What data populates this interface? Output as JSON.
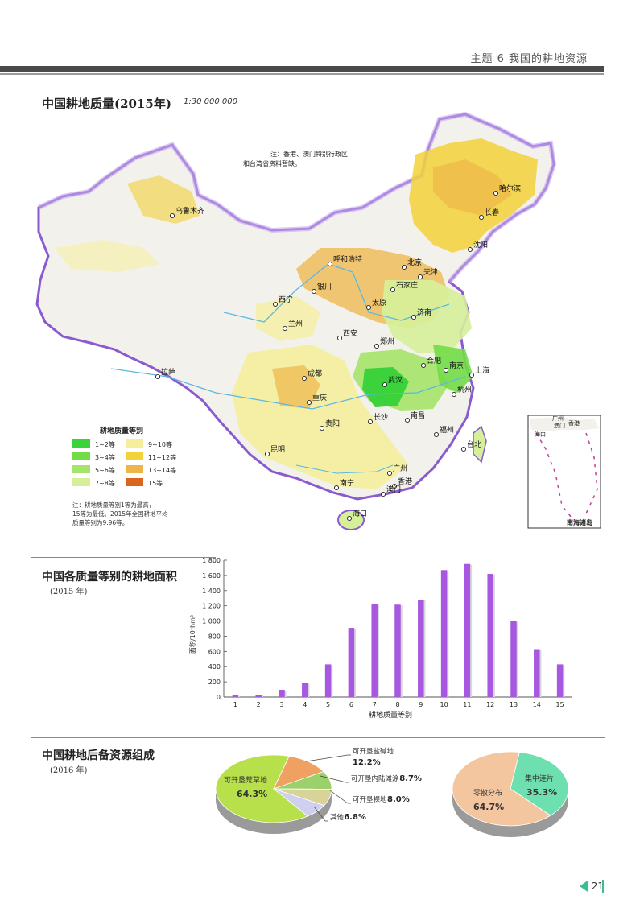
{
  "header": {
    "title": "主题 6   我国的耕地资源"
  },
  "map": {
    "title": "中国耕地质量(2015年)",
    "scale": "1:30 000 000",
    "note_top": [
      "注：香港、澳门特别行政区",
      "和台湾省资料暂缺。"
    ],
    "legend": {
      "title": "耕地质量等别",
      "items": [
        {
          "label": "1~2等",
          "color": "#3cd23c"
        },
        {
          "label": "9~10等",
          "color": "#f5ee9a"
        },
        {
          "label": "3~4等",
          "color": "#72dc47"
        },
        {
          "label": "11~12等",
          "color": "#f2d23a"
        },
        {
          "label": "5~6等",
          "color": "#a5e46a"
        },
        {
          "label": "13~14等",
          "color": "#eeb64a"
        },
        {
          "label": "7~8等",
          "color": "#d6f09a"
        },
        {
          "label": "15等",
          "color": "#d9661a"
        }
      ]
    },
    "note_bottom": [
      "注：耕地质量等别1等为最高，",
      "15等为最低。2015年全国耕地平均",
      "质量等别为9.96等。"
    ],
    "cities": [
      {
        "name": "哈尔滨"
      },
      {
        "name": "长春"
      },
      {
        "name": "沈阳"
      },
      {
        "name": "乌鲁木齐"
      },
      {
        "name": "呼和浩特"
      },
      {
        "name": "北京"
      },
      {
        "name": "天津"
      },
      {
        "name": "银川"
      },
      {
        "name": "石家庄"
      },
      {
        "name": "太原"
      },
      {
        "name": "济南"
      },
      {
        "name": "西宁"
      },
      {
        "name": "兰州"
      },
      {
        "name": "西安"
      },
      {
        "name": "郑州"
      },
      {
        "name": "合肥"
      },
      {
        "name": "南京"
      },
      {
        "name": "上海"
      },
      {
        "name": "武汉"
      },
      {
        "name": "杭州"
      },
      {
        "name": "成都"
      },
      {
        "name": "拉萨"
      },
      {
        "name": "重庆"
      },
      {
        "name": "长沙"
      },
      {
        "name": "南昌"
      },
      {
        "name": "贵阳"
      },
      {
        "name": "福州"
      },
      {
        "name": "台北"
      },
      {
        "name": "昆明"
      },
      {
        "name": "广州"
      },
      {
        "name": "南宁"
      },
      {
        "name": "香港"
      },
      {
        "name": "澳门"
      },
      {
        "name": "海口"
      }
    ],
    "inset": {
      "label": "南海诸岛",
      "labels": [
        "广州",
        "香港",
        "澳门",
        "海口"
      ]
    }
  },
  "area_chart": {
    "title": "中国各质量等别的耕地面积",
    "subtitle": "(2015 年)"
  },
  "chart_data": {
    "type": "bar",
    "categories": [
      "1",
      "2",
      "3",
      "4",
      "5",
      "6",
      "7",
      "8",
      "9",
      "10",
      "11",
      "12",
      "13",
      "14",
      "15"
    ],
    "values": [
      22,
      30,
      95,
      185,
      430,
      910,
      1220,
      1215,
      1280,
      1670,
      1750,
      1620,
      1000,
      630,
      430
    ],
    "xlabel": "耕地质量等别",
    "ylabel": "面积/10⁴hm²",
    "ylim": [
      0,
      1800
    ],
    "yticks": [
      0,
      200,
      400,
      600,
      800,
      1000,
      1200,
      1400,
      1600,
      1800
    ],
    "ytick_labels": [
      "0",
      "200",
      "400",
      "600",
      "800",
      "1 000",
      "1 200",
      "1 400",
      "1 600",
      "1 800"
    ],
    "bar_color": "#a857e0"
  },
  "reserve": {
    "title": "中国耕地后备资源组成",
    "subtitle": "(2016 年)",
    "pie1": [
      {
        "name": "可开垦荒草地",
        "value": 64.3,
        "label": "64.3%",
        "color": "#b7e04a"
      },
      {
        "name": "可开垦盐碱地",
        "value": 12.2,
        "label": "12.2%",
        "color": "#f0a060"
      },
      {
        "name": "可开垦内陆滩涂",
        "value": 8.7,
        "label": "8.7%",
        "color": "#9bd06a"
      },
      {
        "name": "可开垦裸地",
        "value": 8.0,
        "label": "8.0%",
        "color": "#d9d39a"
      },
      {
        "name": "其他",
        "value": 6.8,
        "label": "6.8%",
        "color": "#cfd0f0"
      }
    ],
    "pie2": [
      {
        "name": "集中连片",
        "value": 35.3,
        "label": "35.3%",
        "color": "#6ee0b0"
      },
      {
        "name": "零散分布",
        "value": 64.7,
        "label": "64.7%",
        "color": "#f4c6a0"
      }
    ]
  },
  "footer": {
    "page": "21"
  }
}
